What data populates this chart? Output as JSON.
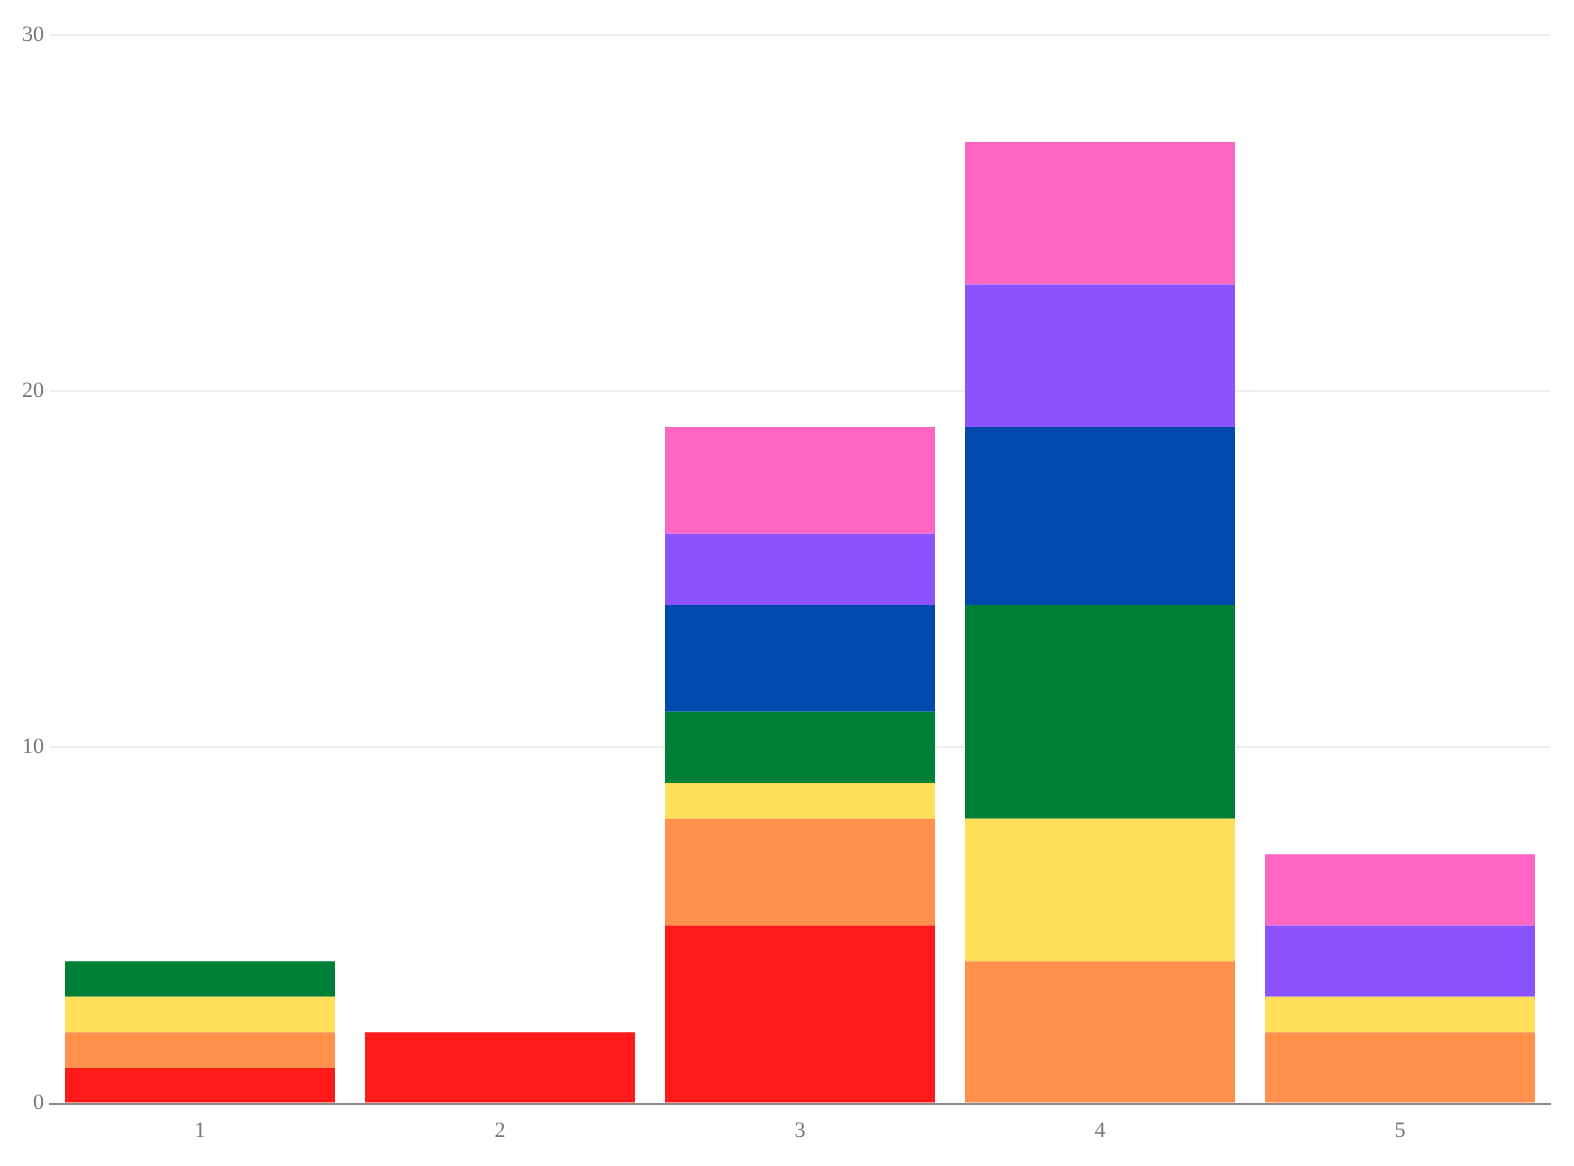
{
  "chart_data": {
    "type": "bar",
    "stacked": true,
    "categories": [
      "1",
      "2",
      "3",
      "4",
      "5"
    ],
    "series": [
      {
        "color": "#ff1a1a",
        "values": [
          1,
          2,
          5,
          null,
          null
        ]
      },
      {
        "color": "#ff914d",
        "values": [
          1,
          null,
          3,
          4,
          2
        ]
      },
      {
        "color": "#ffde59",
        "values": [
          1,
          null,
          1,
          4,
          1
        ]
      },
      {
        "color": "#008037",
        "values": [
          1,
          null,
          2,
          6,
          null
        ]
      },
      {
        "color": "#004aad",
        "values": [
          null,
          null,
          3,
          5,
          null
        ]
      },
      {
        "color": "#8c52ff",
        "values": [
          null,
          null,
          2,
          4,
          2
        ]
      },
      {
        "color": "#ff66c4",
        "values": [
          null,
          null,
          3,
          4,
          2
        ]
      }
    ],
    "ylim": [
      0,
      30
    ],
    "yticks": [
      0,
      10,
      20,
      30
    ],
    "grid": "y",
    "legend": false
  }
}
